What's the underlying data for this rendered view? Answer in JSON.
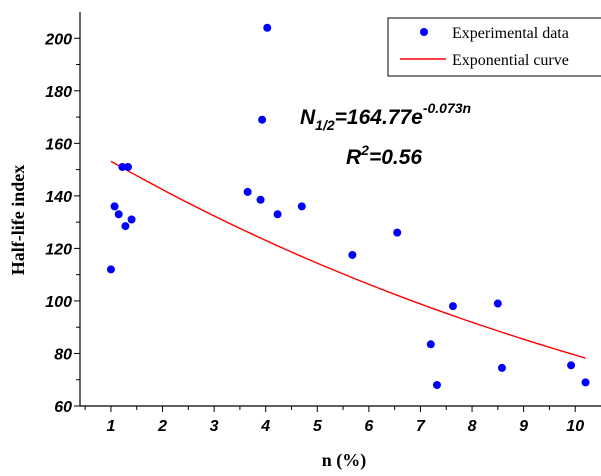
{
  "chart_data": {
    "type": "scatter",
    "xlabel": "n (%)",
    "ylabel": "Half-life index",
    "xlim": [
      0.4,
      10.5
    ],
    "ylim": [
      60,
      210
    ],
    "x_ticks": [
      1,
      2,
      3,
      4,
      5,
      6,
      7,
      8,
      9,
      10
    ],
    "x_tick_labels": [
      "1",
      "2",
      "3",
      "4",
      "5",
      "6",
      "7",
      "8",
      "9",
      "10"
    ],
    "y_ticks": [
      60,
      80,
      100,
      120,
      140,
      160,
      180,
      200
    ],
    "y_tick_labels": [
      "60",
      "80",
      "100",
      "120",
      "140",
      "160",
      "180",
      "200"
    ],
    "grid": false,
    "legend_position": "top-right",
    "series": [
      {
        "name": "Experimental data",
        "type": "scatter",
        "color": "#0000ff",
        "points": [
          {
            "x": 1.0,
            "y": 112
          },
          {
            "x": 1.07,
            "y": 136
          },
          {
            "x": 1.15,
            "y": 133
          },
          {
            "x": 1.22,
            "y": 151
          },
          {
            "x": 1.28,
            "y": 128.5
          },
          {
            "x": 1.33,
            "y": 151
          },
          {
            "x": 1.4,
            "y": 131
          },
          {
            "x": 3.65,
            "y": 141.5
          },
          {
            "x": 3.9,
            "y": 138.5
          },
          {
            "x": 3.93,
            "y": 169
          },
          {
            "x": 4.03,
            "y": 204
          },
          {
            "x": 4.23,
            "y": 133
          },
          {
            "x": 4.7,
            "y": 136
          },
          {
            "x": 5.68,
            "y": 117.5
          },
          {
            "x": 6.55,
            "y": 126
          },
          {
            "x": 7.2,
            "y": 83.5
          },
          {
            "x": 7.32,
            "y": 68
          },
          {
            "x": 7.63,
            "y": 98
          },
          {
            "x": 8.5,
            "y": 99
          },
          {
            "x": 8.58,
            "y": 74.5
          },
          {
            "x": 9.92,
            "y": 75.5
          },
          {
            "x": 10.2,
            "y": 69
          }
        ]
      },
      {
        "name": "Exponential curve",
        "type": "line",
        "color": "#ff0000",
        "equation": {
          "a": 164.77,
          "b": -0.073
        },
        "x_range": [
          1.0,
          10.2
        ]
      }
    ],
    "annotations": {
      "eq_prefix": "N",
      "eq_sub": "1/2",
      "eq_body": "=164.77e",
      "eq_exp": "-0.073n",
      "r2_prefix": "R",
      "r2_exp": "2",
      "r2_value": "=0.56"
    }
  }
}
